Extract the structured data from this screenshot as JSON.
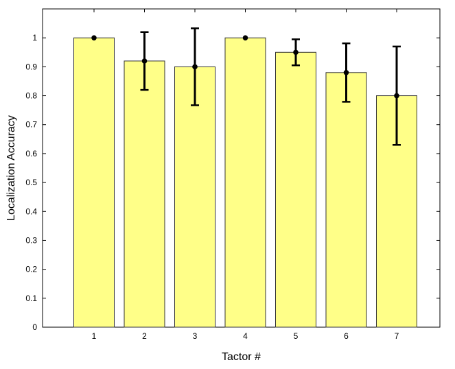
{
  "chart_data": {
    "type": "bar",
    "title": "",
    "xlabel": "Tactor #",
    "ylabel": "Localization Accuracy",
    "categories": [
      "1",
      "2",
      "3",
      "4",
      "5",
      "6",
      "7"
    ],
    "values": [
      1.0,
      0.92,
      0.9,
      1.0,
      0.95,
      0.88,
      0.8
    ],
    "error_low": [
      1.0,
      0.82,
      0.767,
      1.0,
      0.905,
      0.779,
      0.63
    ],
    "error_high": [
      1.0,
      1.02,
      1.033,
      1.0,
      0.995,
      0.981,
      0.97
    ],
    "ylim": [
      0,
      1.1
    ],
    "yticks": [
      "0",
      "0.1",
      "0.2",
      "0.3",
      "0.4",
      "0.5",
      "0.6",
      "0.7",
      "0.8",
      "0.9",
      "1"
    ],
    "grid": false,
    "colors": {
      "bar_fill": "#ffff88",
      "bar_stroke": "#333333",
      "error_bar": "#000000",
      "axes": "#000000"
    }
  }
}
